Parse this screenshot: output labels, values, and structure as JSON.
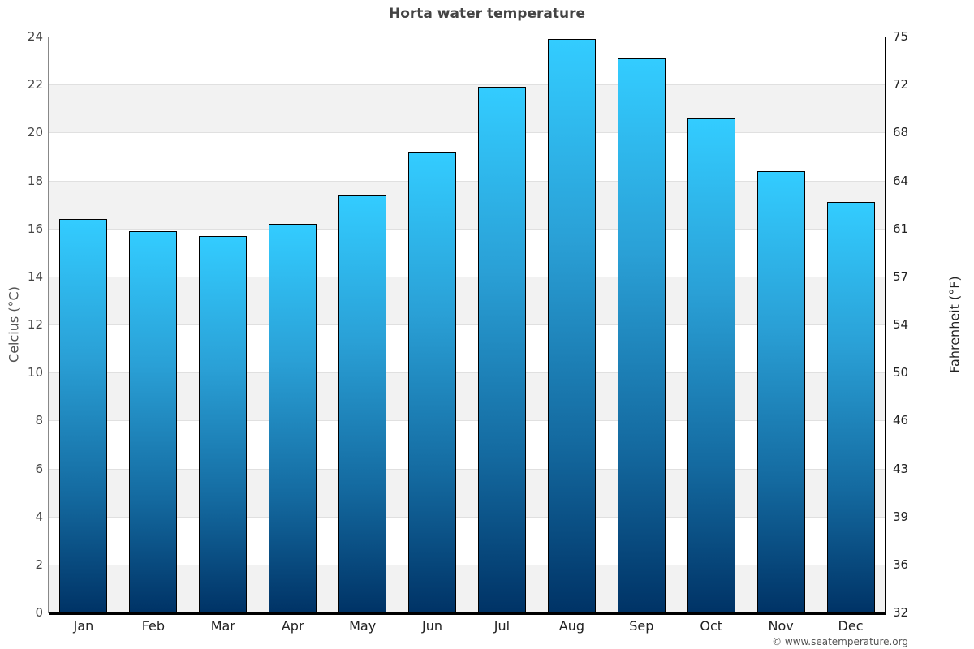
{
  "chart_data": {
    "type": "bar",
    "title": "Horta water temperature",
    "categories": [
      "Jan",
      "Feb",
      "Mar",
      "Apr",
      "May",
      "Jun",
      "Jul",
      "Aug",
      "Sep",
      "Oct",
      "Nov",
      "Dec"
    ],
    "values": [
      16.4,
      15.9,
      15.7,
      16.2,
      17.4,
      19.2,
      21.9,
      23.9,
      23.1,
      20.6,
      18.4,
      17.1
    ],
    "xlabel": "",
    "ylabel": "Celcius (°C)",
    "ylabel_right": "Fahrenheit (°F)",
    "ylim": [
      0,
      24
    ],
    "yticks_left": [
      "0",
      "2",
      "4",
      "6",
      "8",
      "10",
      "12",
      "14",
      "16",
      "18",
      "20",
      "22",
      "24"
    ],
    "yticks_right": [
      "32",
      "36",
      "39",
      "43",
      "46",
      "50",
      "54",
      "57",
      "61",
      "64",
      "68",
      "72",
      "75"
    ],
    "grid": true,
    "legend": "none",
    "colors": {
      "bar_top": "#33ccff",
      "bar_bottom": "#003366",
      "band": "#f2f2f2",
      "gridline": "#e0e0e0"
    }
  },
  "credit": "© www.seatemperature.org"
}
